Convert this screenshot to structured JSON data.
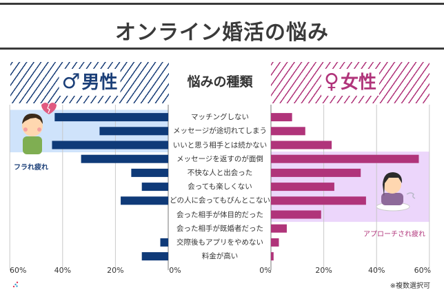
{
  "title": "オンライン婚活の悩み",
  "headers": {
    "male_symbol": "♂",
    "male_label": "男性",
    "center_label": "悩みの種類",
    "female_symbol": "♀",
    "female_label": "女性"
  },
  "captions": {
    "male": "フラれ疲れ",
    "female": "アプローチされ疲れ"
  },
  "note": "※複数選択可",
  "colors": {
    "male_bar": "#0f3a78",
    "female_bar": "#b0347a",
    "male_highlight": "#cfe3fb",
    "female_highlight": "#ecd6fb",
    "grid": "#c8c8c8",
    "title": "#3a3a3a"
  },
  "chart_data": {
    "type": "bar",
    "orientation": "horizontal-butterfly",
    "title": "オンライン婚活の悩み",
    "categories": [
      "マッチングしない",
      "メッセージが途切れてしまう",
      "いいと思う相手とは続かない",
      "メッセージを返すのが面倒",
      "不快な人と出会った",
      "会っても楽しくない",
      "どの人に会ってもぴんとこない",
      "会った相手が体目的だった",
      "会った相手が既婚者だった",
      "交際後もアプリをやめない",
      "料金が高い"
    ],
    "series": [
      {
        "name": "男性",
        "side": "left",
        "values": [
          43,
          26,
          44,
          33,
          14,
          10,
          18,
          0,
          0,
          3,
          10
        ]
      },
      {
        "name": "女性",
        "side": "right",
        "values": [
          8,
          13,
          23,
          56,
          34,
          24,
          36,
          19,
          6,
          3,
          1
        ]
      }
    ],
    "xlim": [
      0,
      60
    ],
    "x_ticks": [
      "60%",
      "40%",
      "20%",
      "0%",
      "0%",
      "20%",
      "40%",
      "60%"
    ],
    "x_tick_values": [
      60,
      40,
      20,
      0,
      0,
      20,
      40,
      60
    ],
    "highlights": [
      {
        "side": "left",
        "rows": [
          0,
          2
        ],
        "caption": "フラれ疲れ"
      },
      {
        "side": "right",
        "rows": [
          3,
          7
        ],
        "caption": "アプローチされ疲れ"
      }
    ],
    "grid": true,
    "note": "※複数選択可"
  }
}
